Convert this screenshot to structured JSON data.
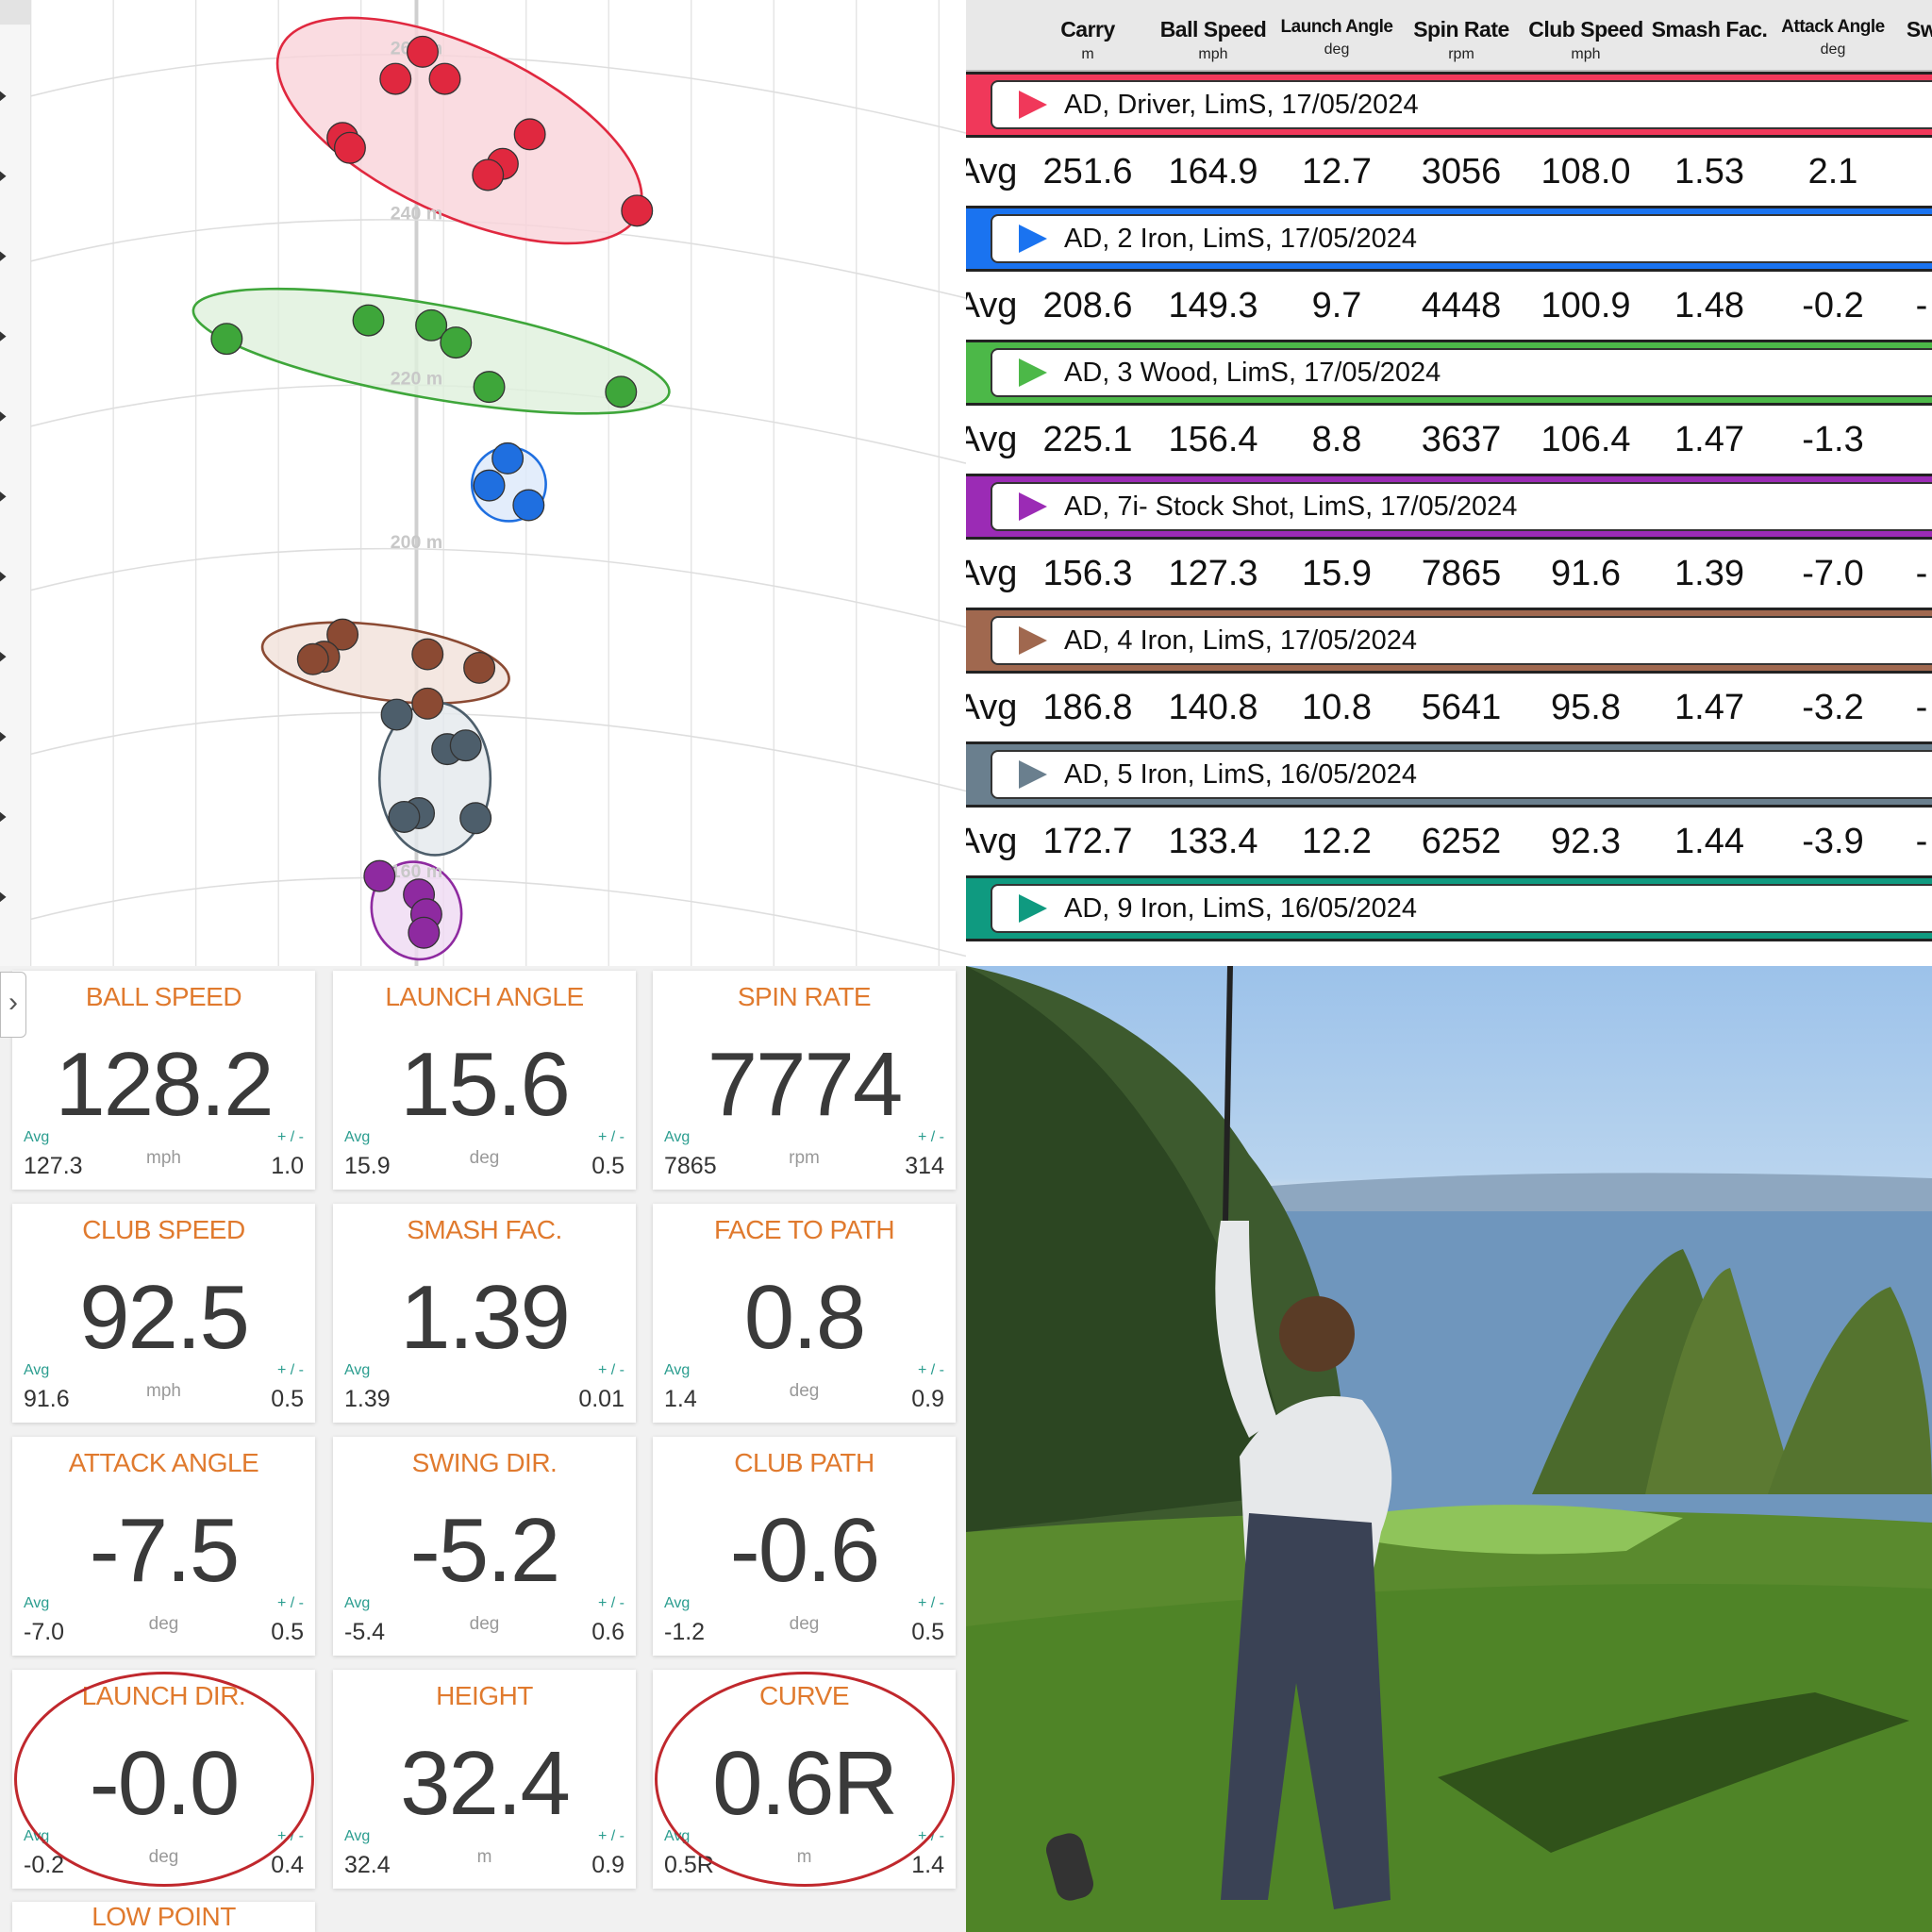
{
  "dispersion": {
    "distance_labels": [
      "260 m",
      "240 m",
      "220 m",
      "200 m",
      "160 m"
    ],
    "groups": [
      {
        "club": "Driver",
        "color": "#e0283f",
        "fill": "#f9d3da"
      },
      {
        "club": "3 Wood",
        "color": "#3ea63a",
        "fill": "#dff0dc"
      },
      {
        "club": "2 Iron",
        "color": "#1f6fe0",
        "fill": "#dce9fa"
      },
      {
        "club": "4 Iron",
        "color": "#8b4a33",
        "fill": "#f1e1da"
      },
      {
        "club": "5 Iron",
        "color": "#4d5e6b",
        "fill": "#e3e8ec"
      },
      {
        "club": "7i- Stock Shot",
        "color": "#8e2aa0",
        "fill": "#efd9f3"
      }
    ]
  },
  "table": {
    "columns": [
      {
        "name": "",
        "unit": ""
      },
      {
        "name": "Carry",
        "unit": "m"
      },
      {
        "name": "Ball Speed",
        "unit": "mph"
      },
      {
        "name": "Launch Angle",
        "unit": "deg"
      },
      {
        "name": "Spin Rate",
        "unit": "rpm"
      },
      {
        "name": "Club Speed",
        "unit": "mph"
      },
      {
        "name": "Smash Fac.",
        "unit": ""
      },
      {
        "name": "Attack Angle",
        "unit": "deg"
      },
      {
        "name": "Sw",
        "unit": ""
      }
    ],
    "groups": [
      {
        "label": "AD, Driver, LimS, 17/05/2024",
        "color": "#f0385a",
        "avg": [
          "Avg",
          "251.6",
          "164.9",
          "12.7",
          "3056",
          "108.0",
          "1.53",
          "2.1",
          ""
        ]
      },
      {
        "label": "AD, 2 Iron, LimS, 17/05/2024",
        "color": "#1a73f0",
        "avg": [
          "Avg",
          "208.6",
          "149.3",
          "9.7",
          "4448",
          "100.9",
          "1.48",
          "-0.2",
          "-"
        ]
      },
      {
        "label": "AD, 3 Wood, LimS, 17/05/2024",
        "color": "#4cb848",
        "avg": [
          "Avg",
          "225.1",
          "156.4",
          "8.8",
          "3637",
          "106.4",
          "1.47",
          "-1.3",
          ""
        ]
      },
      {
        "label": "AD, 7i- Stock Shot, LimS, 17/05/2024",
        "color": "#9b2bb5",
        "avg": [
          "Avg",
          "156.3",
          "127.3",
          "15.9",
          "7865",
          "91.6",
          "1.39",
          "-7.0",
          "-"
        ]
      },
      {
        "label": "AD, 4 Iron, LimS, 17/05/2024",
        "color": "#a0684f",
        "avg": [
          "Avg",
          "186.8",
          "140.8",
          "10.8",
          "5641",
          "95.8",
          "1.47",
          "-3.2",
          "-"
        ]
      },
      {
        "label": "AD, 5 Iron, LimS, 16/05/2024",
        "color": "#6a7f8e",
        "avg": [
          "Avg",
          "172.7",
          "133.4",
          "12.2",
          "6252",
          "92.3",
          "1.44",
          "-3.9",
          "-"
        ]
      },
      {
        "label": "AD, 9 Iron, LimS, 16/05/2024",
        "color": "#0f9a80",
        "avg": [
          "",
          "",
          "",
          "",
          "",
          "",
          "",
          "",
          ""
        ]
      }
    ]
  },
  "tiles": [
    {
      "title": "BALL SPEED",
      "value": "128.2",
      "avg_label": "Avg",
      "avg": "127.3",
      "unit": "mph",
      "pm_label": "+ / -",
      "pm": "1.0"
    },
    {
      "title": "LAUNCH ANGLE",
      "value": "15.6",
      "avg_label": "Avg",
      "avg": "15.9",
      "unit": "deg",
      "pm_label": "+ / -",
      "pm": "0.5"
    },
    {
      "title": "SPIN RATE",
      "value": "7774",
      "avg_label": "Avg",
      "avg": "7865",
      "unit": "rpm",
      "pm_label": "+ / -",
      "pm": "314"
    },
    {
      "title": "CLUB SPEED",
      "value": "92.5",
      "avg_label": "Avg",
      "avg": "91.6",
      "unit": "mph",
      "pm_label": "+ / -",
      "pm": "0.5"
    },
    {
      "title": "SMASH FAC.",
      "value": "1.39",
      "avg_label": "Avg",
      "avg": "1.39",
      "unit": "",
      "pm_label": "+ / -",
      "pm": "0.01"
    },
    {
      "title": "FACE TO PATH",
      "value": "0.8",
      "avg_label": "Avg",
      "avg": "1.4",
      "unit": "deg",
      "pm_label": "+ / -",
      "pm": "0.9"
    },
    {
      "title": "ATTACK ANGLE",
      "value": "-7.5",
      "avg_label": "Avg",
      "avg": "-7.0",
      "unit": "deg",
      "pm_label": "+ / -",
      "pm": "0.5"
    },
    {
      "title": "SWING DIR.",
      "value": "-5.2",
      "avg_label": "Avg",
      "avg": "-5.4",
      "unit": "deg",
      "pm_label": "+ / -",
      "pm": "0.6"
    },
    {
      "title": "CLUB PATH",
      "value": "-0.6",
      "avg_label": "Avg",
      "avg": "-1.2",
      "unit": "deg",
      "pm_label": "+ / -",
      "pm": "0.5"
    },
    {
      "title": "LAUNCH DIR.",
      "value": "-0.0",
      "avg_label": "Avg",
      "avg": "-0.2",
      "unit": "deg",
      "pm_label": "+ / -",
      "pm": "0.4",
      "circled": true
    },
    {
      "title": "HEIGHT",
      "value": "32.4",
      "avg_label": "Avg",
      "avg": "32.4",
      "unit": "m",
      "pm_label": "+ / -",
      "pm": "0.9"
    },
    {
      "title": "CURVE",
      "value": "0.6R",
      "avg_label": "Avg",
      "avg": "0.5R",
      "unit": "m",
      "pm_label": "+ / -",
      "pm": "1.4",
      "circled": true
    },
    {
      "title": "LOW POINT",
      "value": "",
      "avg_label": "",
      "avg": "",
      "unit": "",
      "pm_label": "",
      "pm": ""
    }
  ],
  "annotation_color": "#c0282d",
  "expand_icon": "chevron-right-icon"
}
